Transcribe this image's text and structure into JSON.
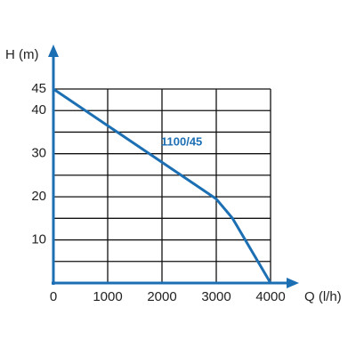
{
  "chart_data": {
    "type": "line",
    "x_label": "Q (l/h)",
    "y_label": "H (m)",
    "xlim": [
      0,
      4000
    ],
    "ylim": [
      0,
      45
    ],
    "xticks": [
      0,
      1000,
      2000,
      3000,
      4000
    ],
    "yticks": [
      10,
      20,
      30,
      40,
      45
    ],
    "ygrid": [
      0,
      5,
      10,
      15,
      20,
      25,
      30,
      35,
      40,
      45
    ],
    "grid": true,
    "axis_color": "#1c6fb3",
    "series": [
      {
        "name": "1100/45",
        "color": "#1c6fb3",
        "x": [
          0,
          3000,
          3300,
          4000
        ],
        "values": [
          45,
          19.5,
          15,
          0
        ]
      }
    ]
  }
}
